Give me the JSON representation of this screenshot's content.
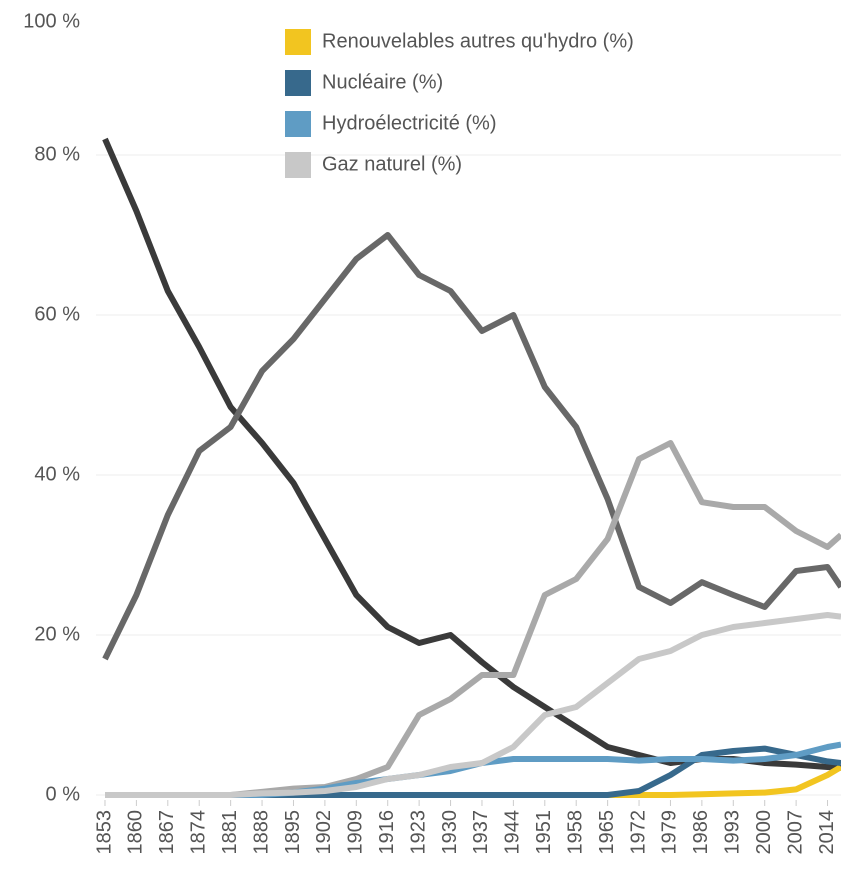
{
  "chart_data": {
    "type": "line",
    "x": [
      1853,
      1860,
      1867,
      1874,
      1881,
      1888,
      1895,
      1902,
      1909,
      1916,
      1923,
      1930,
      1937,
      1944,
      1951,
      1958,
      1965,
      1972,
      1979,
      1986,
      1993,
      2000,
      2007,
      2014,
      2017
    ],
    "series": [
      {
        "color": "#3a3a3a",
        "values": [
          82,
          73,
          63,
          56,
          48.5,
          44,
          39,
          32,
          25,
          21,
          19,
          20,
          16.6,
          13.5,
          11,
          8.5,
          6,
          5,
          4,
          4.5,
          4.5,
          4,
          3.8,
          3.5,
          3.4
        ]
      },
      {
        "color": "#686868",
        "values": [
          17,
          25,
          35,
          43,
          46,
          53,
          57,
          62,
          67,
          70,
          65,
          63,
          58,
          60,
          51,
          46,
          37,
          26,
          24,
          26.6,
          25,
          23.5,
          28,
          28.5,
          26
        ]
      },
      {
        "color": "#a9a9a9",
        "values": [
          0,
          0,
          0,
          0,
          0,
          0.4,
          0.8,
          1,
          2,
          3.5,
          10,
          12,
          15,
          15,
          25,
          27,
          32,
          42,
          44,
          36.6,
          36,
          36,
          33,
          31,
          32.5
        ]
      },
      {
        "name": "Renouvelables autres qu'hydro (%)",
        "color": "#f2c520",
        "values": [
          0,
          0,
          0,
          0,
          0,
          0,
          0,
          0,
          0,
          0,
          0,
          0,
          0,
          0,
          0,
          0,
          0,
          0,
          0,
          0.1,
          0.2,
          0.3,
          0.7,
          2.5,
          3.5
        ]
      },
      {
        "name": "Nucléaire (%)",
        "color": "#37698c",
        "values": [
          0,
          0,
          0,
          0,
          0,
          0,
          0,
          0,
          0,
          0,
          0,
          0,
          0,
          0,
          0,
          0,
          0,
          0.5,
          2.5,
          5,
          5.5,
          5.8,
          5,
          4.2,
          4
        ]
      },
      {
        "name": "Hydroélectricité (%)",
        "color": "#5f9cc4",
        "values": [
          0,
          0,
          0,
          0,
          0,
          0,
          0.3,
          0.8,
          1.5,
          2,
          2.5,
          3,
          4,
          4.5,
          4.5,
          4.5,
          4.5,
          4.3,
          4.5,
          4.5,
          4.3,
          4.5,
          5,
          6,
          6.3
        ]
      },
      {
        "name": "Gaz naturel (%)",
        "color": "#c8c8c8",
        "values": [
          0,
          0,
          0,
          0,
          0,
          0.2,
          0.3,
          0.5,
          1,
          2,
          2.5,
          3.5,
          4,
          6,
          10,
          11,
          14,
          17,
          18,
          20,
          21,
          21.5,
          22,
          22.5,
          22.3
        ]
      }
    ],
    "xlim": [
      1851,
      2017
    ],
    "xticks": [
      1853,
      1860,
      1867,
      1874,
      1881,
      1888,
      1895,
      1902,
      1909,
      1916,
      1923,
      1930,
      1937,
      1944,
      1951,
      1958,
      1965,
      1972,
      1979,
      1986,
      1993,
      2000,
      2007,
      2014
    ],
    "ylim": [
      0,
      100
    ],
    "yticks": [
      {
        "value": 0,
        "label": "0 %"
      },
      {
        "value": 20,
        "label": "20 %"
      },
      {
        "value": 40,
        "label": "40 %"
      },
      {
        "value": 60,
        "label": "60 %"
      },
      {
        "value": 80,
        "label": "80 %"
      },
      {
        "value": 100,
        "label": "100 %"
      }
    ],
    "grid": true,
    "legend": "top"
  }
}
